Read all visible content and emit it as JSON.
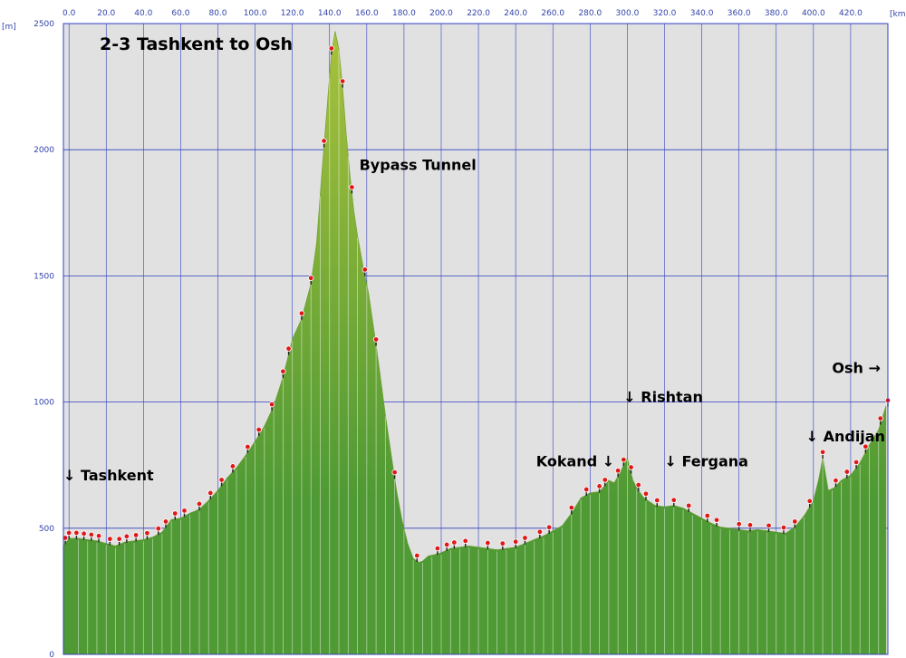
{
  "chart_data": {
    "type": "area",
    "title": "2-3 Tashkent to Osh",
    "x_unit": "[km]",
    "y_unit": "[m]",
    "xlim": [
      -3,
      440
    ],
    "ylim": [
      0,
      2500
    ],
    "x_ticks": [
      0,
      20,
      40,
      60,
      80,
      100,
      120,
      140,
      160,
      180,
      200,
      220,
      240,
      260,
      280,
      300,
      320,
      340,
      360,
      380,
      400,
      420
    ],
    "x_tick_labels": [
      "0.0",
      "20.0",
      "40.0",
      "60.0",
      "80.0",
      "100.0",
      "120.0",
      "140.0",
      "160.0",
      "180.0",
      "200.0",
      "220.0",
      "240.0",
      "260.0",
      "280.0",
      "300.0",
      "320.0",
      "340.0",
      "360.0",
      "380.0",
      "400.0",
      "420.0"
    ],
    "y_ticks": [
      0,
      500,
      1000,
      1500,
      2000,
      2500
    ],
    "y_tick_labels": [
      "0",
      "500",
      "1000",
      "1500",
      "2000",
      "2500"
    ],
    "grid": true,
    "colors": {
      "plot_bg": "#e1e1e1",
      "grid": "#3040c0",
      "frame": "#3040c0",
      "fill_top": "#a8c13c",
      "fill_bottom": "#4f9a34",
      "marker": "#e01818"
    },
    "series": [
      {
        "x": [
          -3,
          0,
          5,
          10,
          15,
          20,
          25,
          30,
          35,
          40,
          45,
          50,
          55,
          60,
          65,
          70,
          75,
          80,
          85,
          90,
          95,
          100,
          105,
          110,
          115,
          120,
          125,
          130,
          133,
          136,
          139,
          141,
          143,
          145,
          147,
          149,
          151,
          153,
          155,
          158,
          161,
          164,
          167,
          170,
          173,
          176,
          179,
          182,
          185,
          188,
          190,
          193,
          196,
          199,
          202,
          205,
          210,
          215,
          220,
          225,
          230,
          235,
          240,
          245,
          250,
          255,
          260,
          265,
          270,
          275,
          280,
          285,
          288,
          290,
          293,
          296,
          300,
          303,
          306,
          309,
          312,
          315,
          320,
          325,
          330,
          335,
          340,
          345,
          350,
          355,
          360,
          365,
          370,
          375,
          380,
          385,
          390,
          395,
          400,
          403,
          405,
          408,
          411,
          415,
          420,
          425,
          430,
          435,
          439
        ],
        "y": [
          430,
          460,
          460,
          455,
          450,
          440,
          430,
          445,
          450,
          455,
          465,
          485,
          535,
          540,
          560,
          575,
          610,
          650,
          700,
          740,
          790,
          845,
          905,
          985,
          1100,
          1250,
          1330,
          1470,
          1630,
          1920,
          2200,
          2380,
          2470,
          2400,
          2250,
          2060,
          1900,
          1760,
          1660,
          1540,
          1430,
          1280,
          1120,
          950,
          800,
          650,
          530,
          440,
          380,
          365,
          370,
          390,
          395,
          400,
          410,
          420,
          425,
          430,
          425,
          420,
          415,
          420,
          425,
          440,
          455,
          470,
          490,
          510,
          560,
          620,
          640,
          645,
          670,
          690,
          680,
          720,
          780,
          690,
          650,
          620,
          605,
          590,
          585,
          590,
          580,
          560,
          540,
          520,
          505,
          500,
          495,
          490,
          495,
          490,
          485,
          480,
          505,
          550,
          610,
          700,
          780,
          650,
          660,
          690,
          710,
          760,
          830,
          890,
          985
        ]
      }
    ],
    "markers_x": [
      -2,
      0,
      4,
      8,
      12,
      16,
      22,
      27,
      31,
      36,
      42,
      48,
      52,
      57,
      62,
      70,
      76,
      82,
      88,
      96,
      102,
      109,
      115,
      118,
      125,
      130,
      137,
      141,
      147,
      152,
      159,
      165,
      175,
      187,
      198,
      203,
      207,
      213,
      225,
      233,
      240,
      245,
      253,
      258,
      270,
      278,
      285,
      288,
      295,
      298,
      302,
      306,
      310,
      316,
      325,
      333,
      343,
      348,
      360,
      366,
      376,
      384,
      390,
      398,
      405,
      412,
      418,
      423,
      428,
      436,
      440
    ],
    "labels": [
      {
        "text": "Bypass Tunnel",
        "x": 156,
        "y": 1920
      },
      {
        "text": "↓ Tashkent",
        "x": -3,
        "y": 690
      },
      {
        "text": "Kokand ↓",
        "x": 251,
        "y": 745
      },
      {
        "text": "↓ Rishtan",
        "x": 298,
        "y": 1000
      },
      {
        "text": "↓ Fergana",
        "x": 320,
        "y": 745
      },
      {
        "text": "↓ Andijan",
        "x": 396,
        "y": 845
      },
      {
        "text": "Osh →",
        "x": 410,
        "y": 1115
      }
    ]
  }
}
